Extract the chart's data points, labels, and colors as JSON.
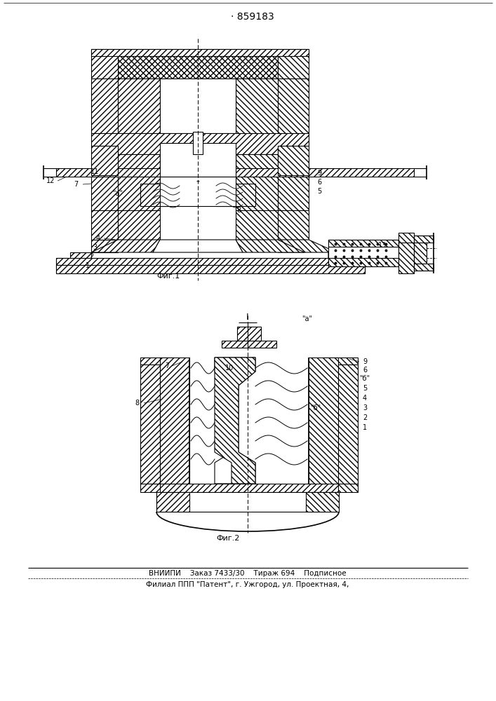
{
  "title": "· 859183",
  "fig1_label": "Фиг.1",
  "fig2_label": "Фиг.2",
  "footer_line1": "ВНИИПИ    Заказ 7433/30    Тираж 694    Подписное",
  "footer_line2": "Филиал ППП \"Патент\", г. Ужгород, ул. Проектная, 4,",
  "bg_color": "#ffffff",
  "line_color": "#000000"
}
